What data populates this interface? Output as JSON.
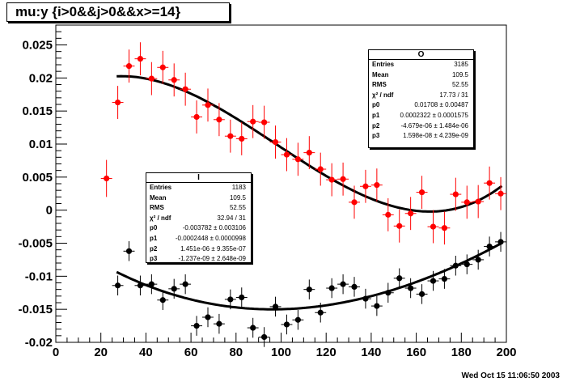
{
  "title": "mu:y {i>0&&j>0&&x>=14}",
  "timestamp": "Wed Oct 15 11:06:50 2003",
  "stats_red": {
    "name": "O",
    "rows": [
      {
        "label": "Entries",
        "value": "3185"
      },
      {
        "label": "Mean",
        "value": "109.5"
      },
      {
        "label": "RMS",
        "value": "52.55"
      },
      {
        "label": "χ² / ndf",
        "value": "17.73 / 31"
      },
      {
        "label": "p0",
        "value": "0.01708 ± 0.00487"
      },
      {
        "label": "p1",
        "value": "0.0002322 ± 0.0001575"
      },
      {
        "label": "p2",
        "value": "-4.679e-06 ± 1.484e-06"
      },
      {
        "label": "p3",
        "value": "1.598e-08 ± 4.239e-09"
      }
    ]
  },
  "stats_black": {
    "name": "I",
    "rows": [
      {
        "label": "Entries",
        "value": "1183"
      },
      {
        "label": "Mean",
        "value": "109.5"
      },
      {
        "label": "RMS",
        "value": "52.55"
      },
      {
        "label": "χ² / ndf",
        "value": "32.94 / 31"
      },
      {
        "label": "p0",
        "value": "-0.003782 ± 0.003106"
      },
      {
        "label": "p1",
        "value": "-0.0002448 ± 0.0000998"
      },
      {
        "label": "p2",
        "value": "1.451e-06 ± 9.355e-07"
      },
      {
        "label": "p3",
        "value": "-1.237e-09 ± 2.648e-09"
      }
    ]
  },
  "chart_data": {
    "type": "scatter",
    "xlim": [
      0,
      200
    ],
    "ylim": [
      -0.02,
      0.028
    ],
    "xticks": [
      0,
      20,
      40,
      60,
      80,
      100,
      120,
      140,
      160,
      180,
      200
    ],
    "yticks": [
      -0.02,
      -0.015,
      -0.01,
      -0.005,
      0,
      0.005,
      0.01,
      0.015,
      0.02,
      0.025
    ],
    "ytick_labels": [
      "-0.02",
      "-0.015",
      "-0.01",
      "-0.005",
      "0",
      "0.005",
      "0.01",
      "0.015",
      "0.02",
      "0.025"
    ],
    "series": [
      {
        "color": "#ff0000",
        "x": [
          22.5,
          27.5,
          32.5,
          37.5,
          42.5,
          47.5,
          52.5,
          57.5,
          62.5,
          67.5,
          72.5,
          77.5,
          82.5,
          87.5,
          92.5,
          97.5,
          102.5,
          107.5,
          112.5,
          117.5,
          122.5,
          127.5,
          132.5,
          137.5,
          142.5,
          147.5,
          152.5,
          157.5,
          162.5,
          167.5,
          172.5,
          177.5,
          182.5,
          187.5,
          192.5,
          197.5
        ],
        "y": [
          0.0048,
          0.0163,
          0.0218,
          0.0229,
          0.0199,
          0.0216,
          0.0197,
          0.0183,
          0.0141,
          0.0159,
          0.0137,
          0.0112,
          0.0108,
          0.0134,
          0.0133,
          0.0103,
          0.0084,
          0.0077,
          0.0087,
          0.0062,
          0.0046,
          0.0047,
          0.0012,
          0.0036,
          0.0038,
          -0.0007,
          -0.0024,
          -0.0005,
          0.0027,
          -0.0025,
          -0.0027,
          0.0024,
          0.0012,
          0.0013,
          0.0041,
          0.0025
        ],
        "err": [
          0.0028,
          0.0025,
          0.0025,
          0.0025,
          0.0025,
          0.0025,
          0.0025,
          0.0025,
          0.0025,
          0.0025,
          0.0025,
          0.0025,
          0.0025,
          0.0025,
          0.0025,
          0.0025,
          0.0025,
          0.0025,
          0.0025,
          0.0025,
          0.0025,
          0.0025,
          0.0025,
          0.0025,
          0.0025,
          0.0025,
          0.0025,
          0.0025,
          0.0025,
          0.0025,
          0.0025,
          0.0025,
          0.0025,
          0.0025,
          0.0025,
          0.0025
        ],
        "fit": {
          "p": [
            0.01708,
            0.0002322,
            -4.679e-06,
            1.598e-08
          ],
          "range": [
            27,
            198
          ]
        }
      },
      {
        "color": "#000000",
        "x": [
          27.5,
          32.5,
          37.5,
          42.5,
          47.5,
          52.5,
          57.5,
          62.5,
          67.5,
          72.5,
          77.5,
          82.5,
          87.5,
          92.5,
          97.5,
          102.5,
          107.5,
          112.5,
          117.5,
          122.5,
          127.5,
          132.5,
          137.5,
          142.5,
          147.5,
          152.5,
          157.5,
          162.5,
          167.5,
          172.5,
          177.5,
          182.5,
          187.5,
          192.5,
          197.5
        ],
        "y": [
          -0.0114,
          -0.0062,
          -0.0114,
          -0.0112,
          -0.0136,
          -0.0119,
          -0.0112,
          -0.0175,
          -0.0162,
          -0.0172,
          -0.0135,
          -0.0132,
          -0.0178,
          -0.0192,
          -0.0146,
          -0.0173,
          -0.0166,
          -0.012,
          -0.0155,
          -0.0118,
          -0.0112,
          -0.0116,
          -0.0134,
          -0.0145,
          -0.0125,
          -0.0103,
          -0.0118,
          -0.0127,
          -0.0107,
          -0.0104,
          -0.0084,
          -0.0082,
          -0.0075,
          -0.0055,
          -0.0048
        ],
        "err": [
          0.0015,
          0.0015,
          0.0015,
          0.0015,
          0.0015,
          0.0015,
          0.0015,
          0.0015,
          0.0015,
          0.0015,
          0.0015,
          0.0015,
          0.0015,
          0.0015,
          0.0015,
          0.0015,
          0.0015,
          0.0015,
          0.0015,
          0.0015,
          0.0015,
          0.0015,
          0.0015,
          0.0015,
          0.0015,
          0.0015,
          0.0015,
          0.0015,
          0.0015,
          0.0015,
          0.0015,
          0.0015,
          0.0015,
          0.0015,
          0.0015
        ],
        "fit": {
          "p": [
            -0.003782,
            -0.0002448,
            1.451e-06,
            -1.237e-09
          ],
          "range": [
            27,
            198
          ]
        }
      }
    ]
  }
}
